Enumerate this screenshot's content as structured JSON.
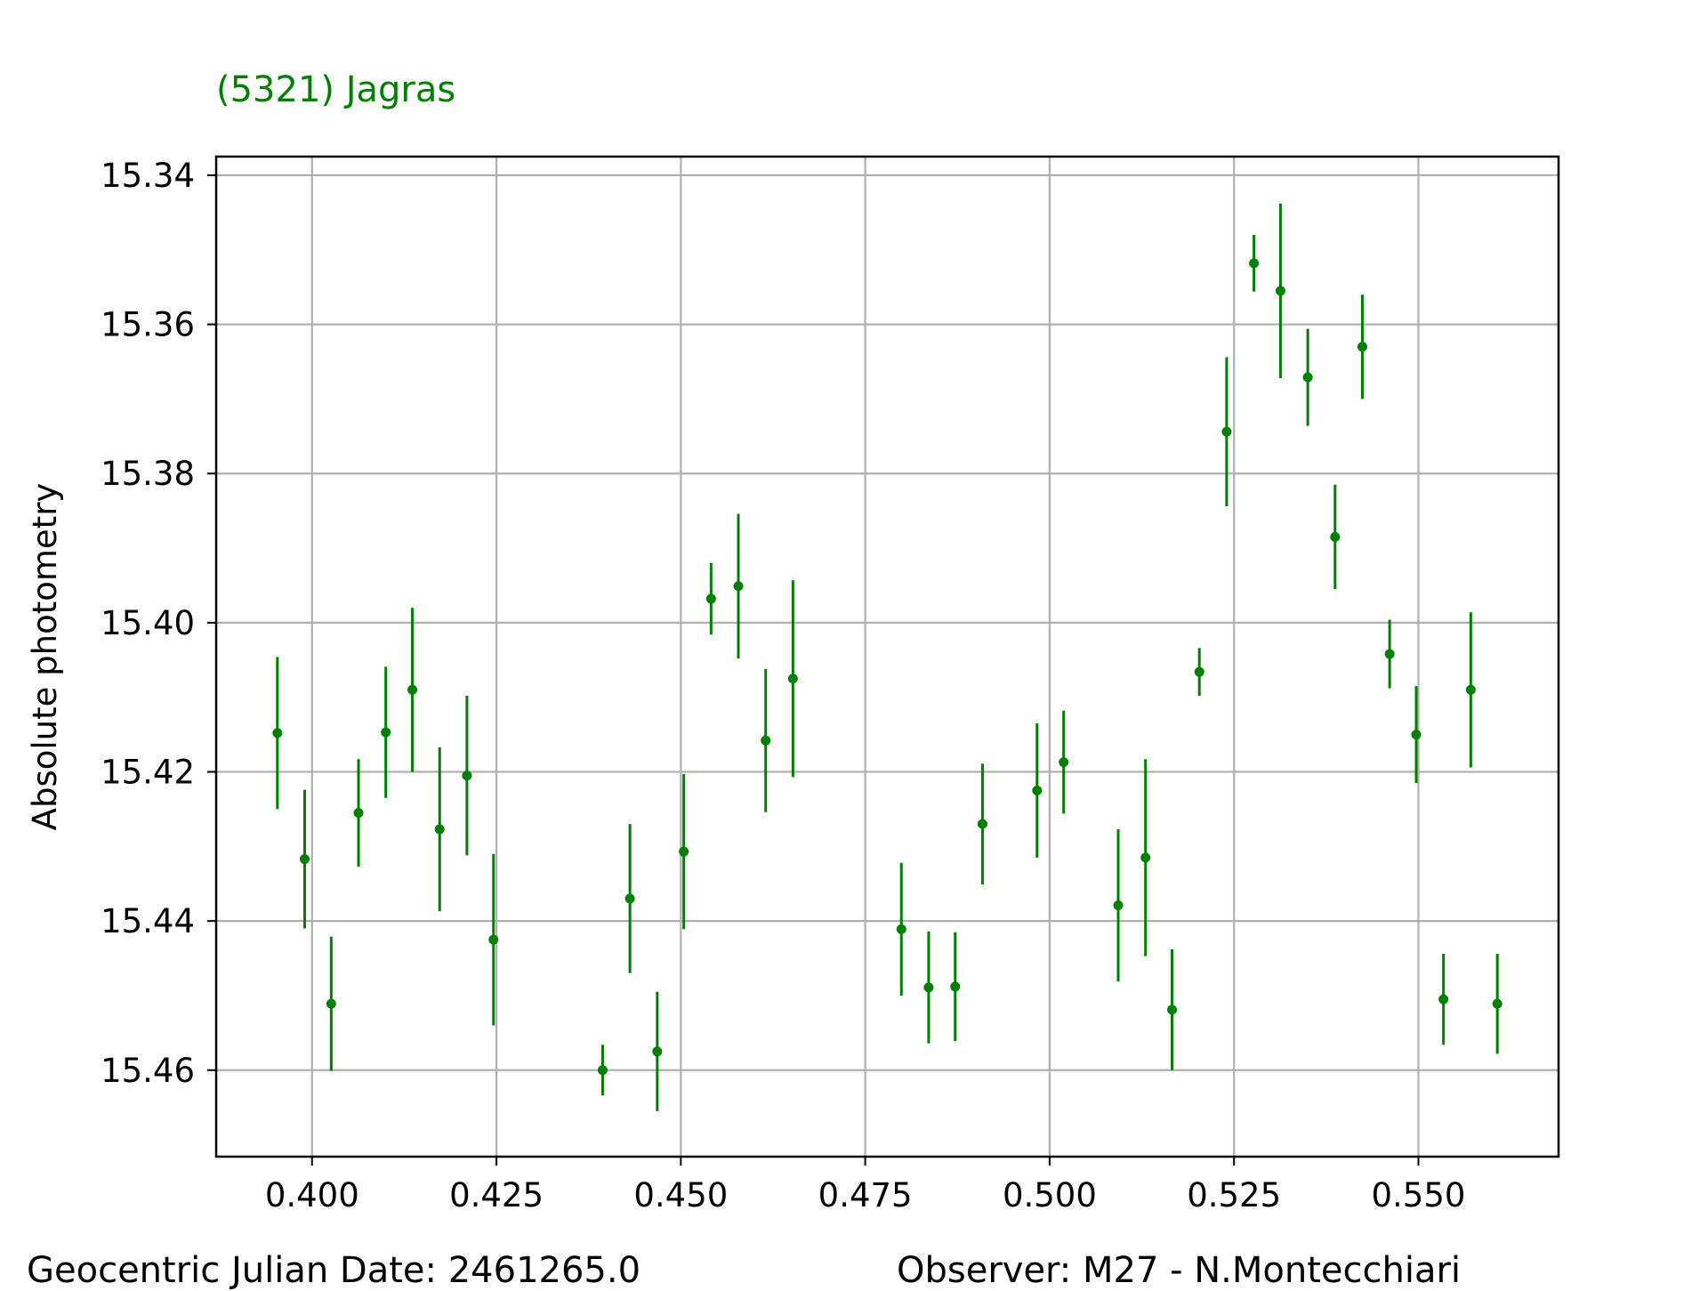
{
  "footer": {
    "left": "Geocentric Julian Date: 2461265.0",
    "right": "Observer: M27 - N.Montecchiari"
  },
  "chart_data": {
    "type": "scatter",
    "title": "(5321) Jagras",
    "xlabel": "",
    "ylabel": "Absolute photometry",
    "xlim": [
      0.387,
      0.569
    ],
    "ylim": [
      15.4716,
      15.3375
    ],
    "y_inverted": true,
    "x_ticks": [
      0.4,
      0.425,
      0.45,
      0.475,
      0.5,
      0.525,
      0.55
    ],
    "x_tick_labels": [
      "0.400",
      "0.425",
      "0.450",
      "0.475",
      "0.500",
      "0.525",
      "0.550"
    ],
    "y_ticks": [
      15.34,
      15.36,
      15.38,
      15.4,
      15.42,
      15.44,
      15.46
    ],
    "y_tick_labels": [
      "15.34",
      "15.36",
      "15.38",
      "15.40",
      "15.42",
      "15.44",
      "15.46"
    ],
    "grid": true,
    "color": "#008000",
    "series": [
      {
        "points": [
          {
            "x": 0.3953,
            "y": 15.4148,
            "err": 0.0102
          },
          {
            "x": 0.399,
            "y": 15.4317,
            "err": 0.0093
          },
          {
            "x": 0.4026,
            "y": 15.4511,
            "err": 0.009
          },
          {
            "x": 0.4063,
            "y": 15.4255,
            "err": 0.0072
          },
          {
            "x": 0.41,
            "y": 15.4147,
            "err": 0.0088
          },
          {
            "x": 0.4136,
            "y": 15.409,
            "err": 0.011
          },
          {
            "x": 0.4173,
            "y": 15.4277,
            "err": 0.011
          },
          {
            "x": 0.421,
            "y": 15.4205,
            "err": 0.0107
          },
          {
            "x": 0.4246,
            "y": 15.4425,
            "err": 0.0115
          },
          {
            "x": 0.4394,
            "y": 15.46,
            "err": 0.0034
          },
          {
            "x": 0.4431,
            "y": 15.437,
            "err": 0.01
          },
          {
            "x": 0.4468,
            "y": 15.4575,
            "err": 0.008
          },
          {
            "x": 0.4504,
            "y": 15.4307,
            "err": 0.0104
          },
          {
            "x": 0.4541,
            "y": 15.3968,
            "err": 0.0048
          },
          {
            "x": 0.4578,
            "y": 15.3951,
            "err": 0.0097
          },
          {
            "x": 0.4615,
            "y": 15.4158,
            "err": 0.0096
          },
          {
            "x": 0.4652,
            "y": 15.4075,
            "err": 0.0132
          },
          {
            "x": 0.4799,
            "y": 15.4411,
            "err": 0.0089
          },
          {
            "x": 0.4836,
            "y": 15.4489,
            "err": 0.0075
          },
          {
            "x": 0.4872,
            "y": 15.4488,
            "err": 0.0073
          },
          {
            "x": 0.4909,
            "y": 15.427,
            "err": 0.0081
          },
          {
            "x": 0.4983,
            "y": 15.4225,
            "err": 0.009
          },
          {
            "x": 0.5019,
            "y": 15.4187,
            "err": 0.0069
          },
          {
            "x": 0.5093,
            "y": 15.4379,
            "err": 0.0102
          },
          {
            "x": 0.513,
            "y": 15.4315,
            "err": 0.0132
          },
          {
            "x": 0.5166,
            "y": 15.4519,
            "err": 0.0081
          },
          {
            "x": 0.5203,
            "y": 15.4066,
            "err": 0.0032
          },
          {
            "x": 0.524,
            "y": 15.3744,
            "err": 0.01
          },
          {
            "x": 0.5277,
            "y": 15.3518,
            "err": 0.0038
          },
          {
            "x": 0.5313,
            "y": 15.3555,
            "err": 0.0117
          },
          {
            "x": 0.535,
            "y": 15.3671,
            "err": 0.0065
          },
          {
            "x": 0.5387,
            "y": 15.3885,
            "err": 0.007
          },
          {
            "x": 0.5424,
            "y": 15.363,
            "err": 0.007
          },
          {
            "x": 0.5461,
            "y": 15.4042,
            "err": 0.0046
          },
          {
            "x": 0.5497,
            "y": 15.415,
            "err": 0.0065
          },
          {
            "x": 0.5534,
            "y": 15.4505,
            "err": 0.0061
          },
          {
            "x": 0.5571,
            "y": 15.409,
            "err": 0.0104
          },
          {
            "x": 0.5607,
            "y": 15.4511,
            "err": 0.0067
          }
        ]
      }
    ]
  }
}
